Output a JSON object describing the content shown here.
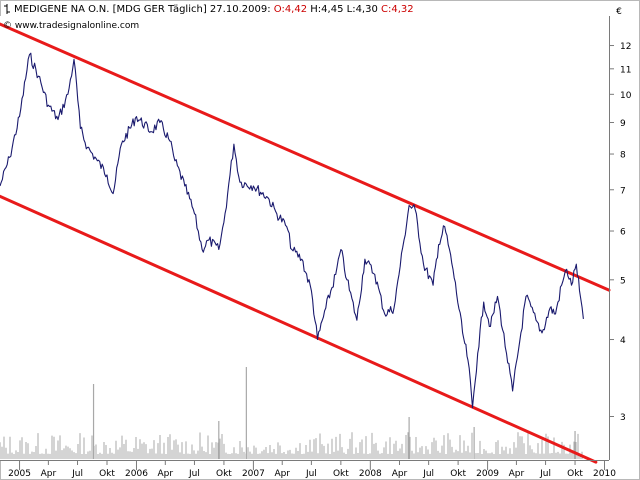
{
  "header": {
    "symbol": "MEDIGENE NA O.N.",
    "exchange": "[MDG GER",
    "period": "Täglich]",
    "date": "27.10.2009",
    "open": "O:4,42",
    "high": "H:4,45",
    "low": "L:4,30",
    "close": "C:4,32"
  },
  "copyright": "© www.tradesignalonline.com",
  "currency_symbol": "€",
  "colors": {
    "price_line": "#1a1a6e",
    "channel": "#e81a1a",
    "volume": "#a8a8a8",
    "axis": "#7a7a7a",
    "open_close_text": "#cc0000",
    "text": "#000000"
  },
  "chart_data": {
    "type": "line",
    "title": "MEDIGENE NA O.N. [MDG GER Täglich] 27.10.2009",
    "y_scale": "log",
    "ylim": [
      2.55,
      13.4
    ],
    "y_ticks": [
      3,
      4,
      5,
      6,
      7,
      8,
      9,
      10,
      11,
      12
    ],
    "x_range": [
      "2004-11-01",
      "2010-01-15"
    ],
    "x_ticks": [
      {
        "label": "2005",
        "date": "2005-01-01"
      },
      {
        "label": "Apr",
        "date": "2005-04-01"
      },
      {
        "label": "Jul",
        "date": "2005-07-01"
      },
      {
        "label": "Okt",
        "date": "2005-10-01"
      },
      {
        "label": "2006",
        "date": "2006-01-01"
      },
      {
        "label": "Apr",
        "date": "2006-04-01"
      },
      {
        "label": "Jul",
        "date": "2006-07-01"
      },
      {
        "label": "Okt",
        "date": "2006-10-01"
      },
      {
        "label": "2007",
        "date": "2007-01-01"
      },
      {
        "label": "Apr",
        "date": "2007-04-01"
      },
      {
        "label": "Jul",
        "date": "2007-07-01"
      },
      {
        "label": "Okt",
        "date": "2007-10-01"
      },
      {
        "label": "2008",
        "date": "2008-01-01"
      },
      {
        "label": "Apr",
        "date": "2008-04-01"
      },
      {
        "label": "Jul",
        "date": "2008-07-01"
      },
      {
        "label": "Okt",
        "date": "2008-10-01"
      },
      {
        "label": "2009",
        "date": "2009-01-01"
      },
      {
        "label": "Apr",
        "date": "2009-04-01"
      },
      {
        "label": "Jul",
        "date": "2009-07-01"
      },
      {
        "label": "Okt",
        "date": "2009-10-01"
      },
      {
        "label": "2010",
        "date": "2010-01-01"
      }
    ],
    "series": [
      {
        "name": "MEDIGENE NA O.N.",
        "points": [
          [
            "2004-11-01",
            7.1
          ],
          [
            "2004-12-01",
            7.9
          ],
          [
            "2005-01-01",
            9.2
          ],
          [
            "2005-02-01",
            11.6
          ],
          [
            "2005-03-01",
            10.7
          ],
          [
            "2005-04-01",
            9.6
          ],
          [
            "2005-05-01",
            9.1
          ],
          [
            "2005-06-01",
            10.0
          ],
          [
            "2005-06-20",
            11.4
          ],
          [
            "2005-07-10",
            8.8
          ],
          [
            "2005-08-01",
            8.2
          ],
          [
            "2005-09-01",
            7.8
          ],
          [
            "2005-10-01",
            7.4
          ],
          [
            "2005-10-20",
            6.9
          ],
          [
            "2005-11-15",
            8.3
          ],
          [
            "2006-01-01",
            9.2
          ],
          [
            "2006-02-15",
            8.7
          ],
          [
            "2006-03-15",
            9.0
          ],
          [
            "2006-04-15",
            8.4
          ],
          [
            "2006-05-01",
            7.8
          ],
          [
            "2006-06-01",
            7.1
          ],
          [
            "2006-07-01",
            6.4
          ],
          [
            "2006-07-25",
            5.6
          ],
          [
            "2006-08-15",
            5.8
          ],
          [
            "2006-09-15",
            5.6
          ],
          [
            "2006-10-01",
            6.2
          ],
          [
            "2006-10-20",
            7.4
          ],
          [
            "2006-11-01",
            8.3
          ],
          [
            "2006-11-20",
            7.2
          ],
          [
            "2007-01-01",
            7.1
          ],
          [
            "2007-02-15",
            6.8
          ],
          [
            "2007-03-15",
            6.4
          ],
          [
            "2007-04-15",
            6.1
          ],
          [
            "2007-05-01",
            5.6
          ],
          [
            "2007-06-01",
            5.4
          ],
          [
            "2007-07-01",
            4.8
          ],
          [
            "2007-07-20",
            4.0
          ],
          [
            "2007-08-15",
            4.5
          ],
          [
            "2007-09-15",
            5.1
          ],
          [
            "2007-10-01",
            5.6
          ],
          [
            "2007-10-20",
            5.0
          ],
          [
            "2007-11-20",
            4.3
          ],
          [
            "2007-12-15",
            5.4
          ],
          [
            "2008-01-15",
            5.1
          ],
          [
            "2008-02-15",
            4.4
          ],
          [
            "2008-03-15",
            4.5
          ],
          [
            "2008-04-15",
            5.8
          ],
          [
            "2008-05-01",
            6.6
          ],
          [
            "2008-05-20",
            6.5
          ],
          [
            "2008-06-15",
            5.3
          ],
          [
            "2008-07-15",
            4.9
          ],
          [
            "2008-08-01",
            5.7
          ],
          [
            "2008-08-20",
            6.1
          ],
          [
            "2008-09-15",
            5.2
          ],
          [
            "2008-10-15",
            4.1
          ],
          [
            "2008-11-01",
            3.7
          ],
          [
            "2008-11-15",
            3.1
          ],
          [
            "2008-12-01",
            3.8
          ],
          [
            "2008-12-20",
            4.6
          ],
          [
            "2009-01-10",
            4.2
          ],
          [
            "2009-02-01",
            4.7
          ],
          [
            "2009-03-01",
            3.8
          ],
          [
            "2009-03-20",
            3.3
          ],
          [
            "2009-04-15",
            4.1
          ],
          [
            "2009-05-01",
            4.7
          ],
          [
            "2009-06-01",
            4.3
          ],
          [
            "2009-06-20",
            4.1
          ],
          [
            "2009-07-15",
            4.5
          ],
          [
            "2009-08-01",
            4.4
          ],
          [
            "2009-08-20",
            4.9
          ],
          [
            "2009-09-05",
            5.2
          ],
          [
            "2009-09-20",
            4.9
          ],
          [
            "2009-10-05",
            5.3
          ],
          [
            "2009-10-15",
            4.8
          ],
          [
            "2009-10-27",
            4.32
          ]
        ]
      }
    ],
    "channel_lines": [
      {
        "name": "upper",
        "points": [
          [
            "2004-11-01",
            13.0
          ],
          [
            "2010-01-15",
            4.81
          ]
        ]
      },
      {
        "name": "lower",
        "points": [
          [
            "2004-11-01",
            6.83
          ],
          [
            "2009-12-05",
            2.53
          ]
        ]
      }
    ],
    "volume": {
      "relative_scale": true,
      "notable_spikes": [
        {
          "date": "2005-08-20",
          "level": 0.75
        },
        {
          "date": "2006-09-15",
          "level": 0.38
        },
        {
          "date": "2006-12-10",
          "level": 0.92
        },
        {
          "date": "2008-05-01",
          "level": 0.42
        },
        {
          "date": "2008-11-20",
          "level": 0.32
        },
        {
          "date": "2009-10-01",
          "level": 0.28
        }
      ]
    }
  }
}
